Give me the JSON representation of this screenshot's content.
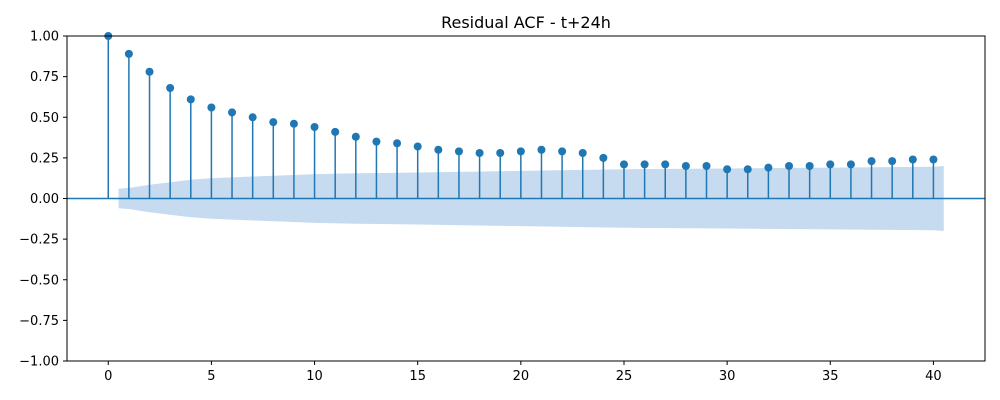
{
  "chart_data": {
    "type": "scatter",
    "subtype": "stem",
    "title": "Residual ACF - t+24h",
    "xlabel": "",
    "ylabel": "",
    "xlim": [
      -2,
      42.5
    ],
    "ylim": [
      -1.0,
      1.0
    ],
    "x_ticks": [
      0,
      5,
      10,
      15,
      20,
      25,
      30,
      35,
      40
    ],
    "y_ticks": [
      -1.0,
      -0.75,
      -0.5,
      -0.25,
      0.0,
      0.25,
      0.5,
      0.75,
      1.0
    ],
    "y_tick_labels": [
      "−1.00",
      "−0.75",
      "−0.50",
      "−0.25",
      "0.00",
      "0.25",
      "0.50",
      "0.75",
      "1.00"
    ],
    "x_tick_labels": [
      "0",
      "5",
      "10",
      "15",
      "20",
      "25",
      "30",
      "35",
      "40"
    ],
    "grid": false,
    "colors": {
      "stem": "#1f77b4",
      "band": "#c6dbef",
      "axis": "#000000"
    },
    "series": [
      {
        "lags": [
          0,
          1,
          2,
          3,
          4,
          5,
          6,
          7,
          8,
          9,
          10,
          11,
          12,
          13,
          14,
          15,
          16,
          17,
          18,
          19,
          20,
          21,
          22,
          23,
          24,
          25,
          26,
          27,
          28,
          29,
          30,
          31,
          32,
          33,
          34,
          35,
          36,
          37,
          38,
          39,
          40
        ],
        "values": [
          1.0,
          0.89,
          0.78,
          0.68,
          0.61,
          0.56,
          0.53,
          0.5,
          0.47,
          0.46,
          0.44,
          0.41,
          0.38,
          0.35,
          0.34,
          0.32,
          0.3,
          0.29,
          0.28,
          0.28,
          0.29,
          0.3,
          0.29,
          0.28,
          0.25,
          0.21,
          0.21,
          0.21,
          0.2,
          0.2,
          0.18,
          0.18,
          0.19,
          0.2,
          0.2,
          0.21,
          0.21,
          0.23,
          0.23,
          0.24,
          0.24
        ]
      }
    ],
    "confidence_band": {
      "lags": [
        0.5,
        1,
        2,
        3,
        4,
        5,
        6,
        7,
        8,
        9,
        10,
        12,
        15,
        20,
        25,
        30,
        35,
        40,
        40.5
      ],
      "upper": [
        0.06,
        0.065,
        0.085,
        0.1,
        0.115,
        0.125,
        0.13,
        0.135,
        0.14,
        0.145,
        0.15,
        0.155,
        0.16,
        0.17,
        0.18,
        0.185,
        0.19,
        0.195,
        0.2
      ]
    }
  }
}
